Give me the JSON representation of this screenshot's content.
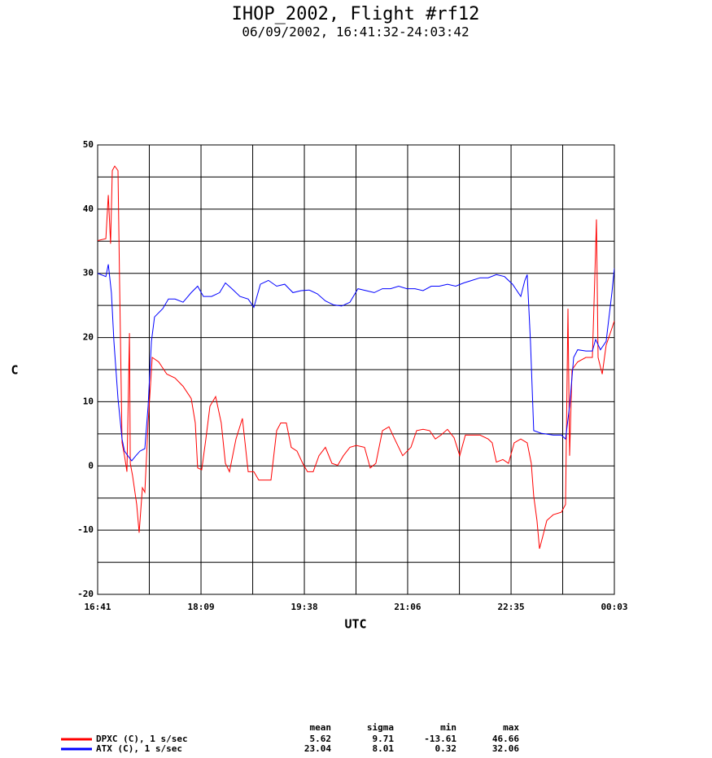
{
  "chart_data": {
    "type": "line",
    "title": "IHOP_2002, Flight #rf12",
    "subtitle": "06/09/2002, 16:41:32-24:03:42",
    "xlabel": "UTC",
    "ylabel": "C",
    "xlim": [
      1001.5,
      1443.7
    ],
    "xticks": [
      {
        "value": 1001.5,
        "label": "16:41"
      },
      {
        "value": 1089.96,
        "label": "18:09"
      },
      {
        "value": 1178.4,
        "label": "19:38"
      },
      {
        "value": 1266.8,
        "label": "21:06"
      },
      {
        "value": 1355.3,
        "label": "22:35"
      },
      {
        "value": 1443.7,
        "label": "00:03"
      }
    ],
    "xminor_ticks": [
      1045.7,
      1134.2,
      1222.6,
      1311.1,
      1399.5
    ],
    "ylim": [
      -20,
      50
    ],
    "yticks": [
      50,
      40,
      30,
      20,
      10,
      0,
      -10,
      -20
    ],
    "yminor_ticks": [
      45,
      35,
      25,
      15,
      5,
      -5,
      -15
    ],
    "grid": true,
    "stats_columns": [
      "mean",
      "sigma",
      "min",
      "max"
    ],
    "series": [
      {
        "name": "DPXC (C), 1 s/sec",
        "color": "#ff0000",
        "stats": [
          5.62,
          9.71,
          -13.61,
          46.66
        ],
        "x": [
          1001.5,
          1008.5,
          1010.6,
          1012.6,
          1014.0,
          1016.1,
          1018.9,
          1020.3,
          1022.4,
          1024.5,
          1026.6,
          1028.7,
          1029.4,
          1031.4,
          1034.9,
          1037.0,
          1039.8,
          1041.9,
          1044.7,
          1048.2,
          1053.7,
          1060.7,
          1067.7,
          1074.6,
          1081.6,
          1085.1,
          1087.1,
          1090.6,
          1094.1,
          1097.6,
          1102.5,
          1107.3,
          1110.8,
          1114.3,
          1119.9,
          1125.4,
          1130.3,
          1135.2,
          1139.4,
          1144.2,
          1149.8,
          1154.7,
          1158.2,
          1163.0,
          1167.2,
          1172.1,
          1177.0,
          1181.1,
          1186.0,
          1190.9,
          1196.4,
          1202.0,
          1206.9,
          1211.8,
          1217.4,
          1222.9,
          1229.9,
          1234.8,
          1239.6,
          1245.2,
          1250.8,
          1255.7,
          1262.6,
          1269.6,
          1274.5,
          1280.0,
          1285.6,
          1290.5,
          1295.3,
          1300.9,
          1306.5,
          1311.4,
          1316.2,
          1321.8,
          1328.8,
          1335.7,
          1339.2,
          1342.7,
          1348.3,
          1353.1,
          1358.0,
          1363.6,
          1369.1,
          1372.6,
          1374.7,
          1377.5,
          1379.6,
          1382.4,
          1385.9,
          1391.4,
          1398.4,
          1401.9,
          1404.0,
          1405.4,
          1407.5,
          1412.3,
          1419.3,
          1424.9,
          1427.0,
          1428.4,
          1429.8,
          1433.3,
          1436.7,
          1440.2,
          1443.7
        ],
        "values": [
          35.1,
          35.4,
          42.2,
          34.6,
          46,
          46.7,
          46,
          28.3,
          3.6,
          1.6,
          -0.9,
          20.7,
          0.4,
          -1.5,
          -6,
          -10.4,
          -3.4,
          -4.1,
          6.7,
          16.9,
          16.2,
          14.3,
          13.7,
          12.4,
          10.5,
          6.7,
          -0.3,
          -0.6,
          4.2,
          9.3,
          10.8,
          6.7,
          0.4,
          -0.9,
          4.2,
          7.4,
          -0.9,
          -0.9,
          -2.2,
          -2.2,
          -2.2,
          5.5,
          6.7,
          6.7,
          2.9,
          2.3,
          0.4,
          -0.9,
          -0.9,
          1.6,
          2.9,
          0.4,
          0.1,
          1.6,
          2.9,
          3.2,
          2.9,
          -0.3,
          0.4,
          5.5,
          6.1,
          4.2,
          1.6,
          2.9,
          5.5,
          5.7,
          5.5,
          4.2,
          4.8,
          5.7,
          4.4,
          1.6,
          4.8,
          4.8,
          4.8,
          4.2,
          3.6,
          0.6,
          1.0,
          0.4,
          3.6,
          4.2,
          3.6,
          0.4,
          -4.7,
          -8.5,
          -12.9,
          -11,
          -8.5,
          -7.6,
          -7.2,
          -6,
          24.5,
          1.6,
          15,
          16.2,
          16.9,
          16.9,
          29.5,
          38.4,
          16.9,
          14.3,
          18.8,
          20.7,
          22.6
        ]
      },
      {
        "name": "ATX (C), 1 s/sec",
        "color": "#0000ff",
        "stats": [
          23.04,
          8.01,
          0.32,
          32.06
        ],
        "x": [
          1001.5,
          1008.5,
          1010.6,
          1013.3,
          1015.4,
          1018.9,
          1022.4,
          1024.5,
          1027.3,
          1030.7,
          1034.2,
          1037.7,
          1041.9,
          1044.7,
          1047.5,
          1050.2,
          1057.2,
          1062.1,
          1067.7,
          1074.6,
          1081.6,
          1087.1,
          1092.0,
          1099.0,
          1105.9,
          1110.8,
          1116.4,
          1123.3,
          1130.3,
          1135.2,
          1140.8,
          1147.7,
          1154.7,
          1161.6,
          1168.6,
          1175.6,
          1182.5,
          1189.5,
          1196.4,
          1203.4,
          1210.3,
          1217.4,
          1224.3,
          1231.3,
          1238.2,
          1245.2,
          1252.2,
          1259.1,
          1266.1,
          1273.1,
          1280.0,
          1287.0,
          1293.9,
          1300.9,
          1307.9,
          1314.8,
          1321.8,
          1328.8,
          1335.7,
          1342.7,
          1349.7,
          1356.6,
          1363.6,
          1367.1,
          1369.1,
          1371.9,
          1374.7,
          1381.0,
          1391.4,
          1398.4,
          1401.9,
          1405.4,
          1408.9,
          1412.3,
          1419.3,
          1424.9,
          1427.7,
          1431.8,
          1436.7,
          1441.6,
          1443.7
        ],
        "values": [
          30.0,
          29.5,
          31.4,
          27,
          19.4,
          10.5,
          4.2,
          2.3,
          1.6,
          0.8,
          1.6,
          2.3,
          2.7,
          9.3,
          19.4,
          23.2,
          24.5,
          26,
          26,
          25.5,
          27,
          28,
          26.4,
          26.4,
          27,
          28.5,
          27.6,
          26.4,
          26,
          24.7,
          28.3,
          28.9,
          28,
          28.3,
          27,
          27.3,
          27.4,
          26.8,
          25.7,
          25.1,
          24.9,
          25.5,
          27.6,
          27.3,
          27,
          27.6,
          27.6,
          28,
          27.6,
          27.6,
          27.3,
          28,
          28,
          28.3,
          28,
          28.5,
          28.9,
          29.3,
          29.3,
          29.8,
          29.5,
          28.3,
          26.4,
          28.9,
          29.8,
          19.4,
          5.5,
          5.1,
          4.8,
          4.8,
          4.2,
          9.3,
          16.9,
          18.1,
          17.9,
          17.9,
          19.7,
          18.1,
          19.4,
          27,
          30.8
        ]
      }
    ]
  }
}
